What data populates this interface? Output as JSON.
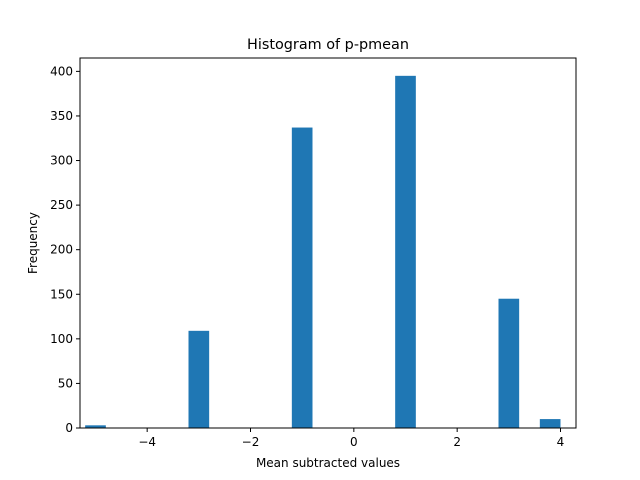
{
  "chart_data": {
    "type": "bar",
    "title": "Histogram of p-pmean",
    "xlabel": "Mean subtracted values",
    "ylabel": "Frequency",
    "xlim": [
      -5.3,
      4.3
    ],
    "ylim": [
      0,
      415
    ],
    "xticks": [
      -4,
      -2,
      0,
      2,
      4
    ],
    "xtick_labels": [
      "−4",
      "−2",
      "0",
      "2",
      "4"
    ],
    "yticks": [
      0,
      50,
      100,
      150,
      200,
      250,
      300,
      350,
      400
    ],
    "ytick_labels": [
      "0",
      "50",
      "100",
      "150",
      "200",
      "250",
      "300",
      "350",
      "400"
    ],
    "bar_color": "#1f77b4",
    "bars": [
      {
        "x0": -5.2,
        "x1": -4.8,
        "value": 3
      },
      {
        "x0": -3.2,
        "x1": -2.8,
        "value": 109
      },
      {
        "x0": -1.2,
        "x1": -0.8,
        "value": 337
      },
      {
        "x0": 0.8,
        "x1": 1.2,
        "value": 395
      },
      {
        "x0": 2.8,
        "x1": 3.2,
        "value": 145
      },
      {
        "x0": 3.6,
        "x1": 4.0,
        "value": 10
      }
    ],
    "grid": false,
    "legend": null
  }
}
